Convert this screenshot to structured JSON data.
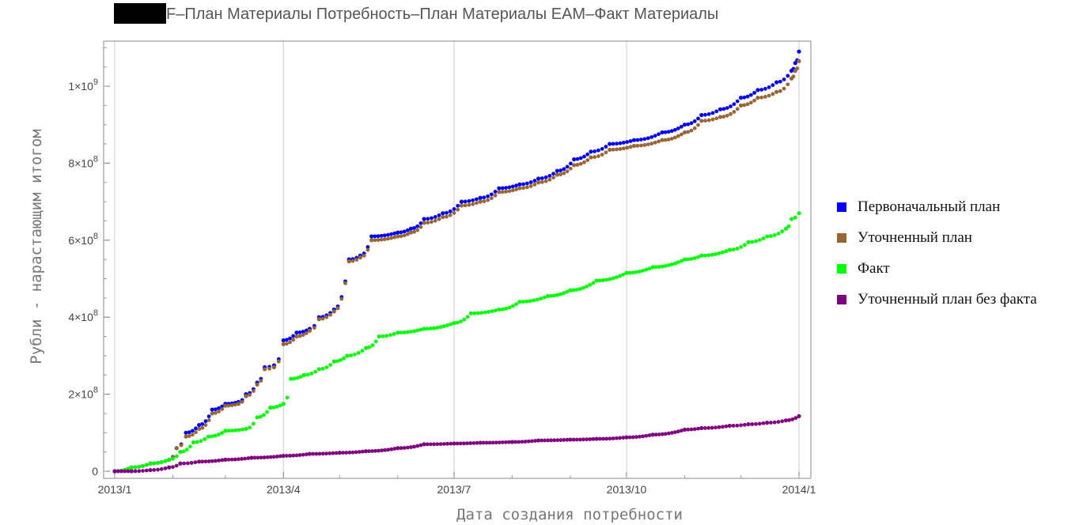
{
  "chart_data": {
    "type": "scatter",
    "title_visible": "F–План Материалы Потребность–План Материалы EAM–Факт Материалы",
    "xlabel": "Дата создания потребности",
    "ylabel": "Рубли - нарастающим итогом",
    "x_ticks": [
      "2013/1",
      "2013/4",
      "2013/7",
      "2013/10",
      "2014/1"
    ],
    "x_range": [
      "2013-01-01",
      "2014-01-01"
    ],
    "y_ticks": [
      "0",
      "2×10^8",
      "4×10^8",
      "6×10^8",
      "8×10^8",
      "1×10^9"
    ],
    "ylim": [
      0,
      1100000000
    ],
    "grid": "vertical",
    "legend_position": "right",
    "series": [
      {
        "name": "Первоначальный план",
        "color": "#0000ff",
        "points": [
          [
            "2013-01-01",
            0
          ],
          [
            "2013-01-10",
            10000000
          ],
          [
            "2013-01-20",
            20000000
          ],
          [
            "2013-01-30",
            30000000
          ],
          [
            "2013-02-03",
            60000000
          ],
          [
            "2013-02-08",
            100000000
          ],
          [
            "2013-02-15",
            120000000
          ],
          [
            "2013-02-22",
            160000000
          ],
          [
            "2013-03-01",
            175000000
          ],
          [
            "2013-03-08",
            180000000
          ],
          [
            "2013-03-12",
            200000000
          ],
          [
            "2013-03-18",
            230000000
          ],
          [
            "2013-03-22",
            270000000
          ],
          [
            "2013-03-27",
            275000000
          ],
          [
            "2013-04-01",
            340000000
          ],
          [
            "2013-04-08",
            360000000
          ],
          [
            "2013-04-15",
            370000000
          ],
          [
            "2013-04-20",
            400000000
          ],
          [
            "2013-04-28",
            420000000
          ],
          [
            "2013-05-06",
            550000000
          ],
          [
            "2013-05-12",
            560000000
          ],
          [
            "2013-05-18",
            610000000
          ],
          [
            "2013-06-01",
            620000000
          ],
          [
            "2013-06-08",
            630000000
          ],
          [
            "2013-06-15",
            655000000
          ],
          [
            "2013-06-25",
            670000000
          ],
          [
            "2013-07-05",
            700000000
          ],
          [
            "2013-07-15",
            710000000
          ],
          [
            "2013-07-25",
            735000000
          ],
          [
            "2013-08-05",
            745000000
          ],
          [
            "2013-08-15",
            760000000
          ],
          [
            "2013-08-25",
            780000000
          ],
          [
            "2013-09-03",
            810000000
          ],
          [
            "2013-09-12",
            830000000
          ],
          [
            "2013-09-22",
            850000000
          ],
          [
            "2013-10-05",
            860000000
          ],
          [
            "2013-10-20",
            880000000
          ],
          [
            "2013-11-01",
            900000000
          ],
          [
            "2013-11-10",
            925000000
          ],
          [
            "2013-11-20",
            940000000
          ],
          [
            "2013-12-01",
            970000000
          ],
          [
            "2013-12-10",
            990000000
          ],
          [
            "2013-12-20",
            1010000000
          ],
          [
            "2013-12-28",
            1040000000
          ],
          [
            "2013-12-30",
            1060000000
          ],
          [
            "2014-01-01",
            1090000000
          ]
        ]
      },
      {
        "name": "Уточненный план",
        "color": "#996633",
        "points": [
          [
            "2013-01-01",
            0
          ],
          [
            "2013-01-10",
            10000000
          ],
          [
            "2013-01-20",
            20000000
          ],
          [
            "2013-01-30",
            30000000
          ],
          [
            "2013-02-03",
            60000000
          ],
          [
            "2013-02-08",
            90000000
          ],
          [
            "2013-02-15",
            110000000
          ],
          [
            "2013-02-22",
            150000000
          ],
          [
            "2013-03-01",
            170000000
          ],
          [
            "2013-03-08",
            175000000
          ],
          [
            "2013-03-12",
            195000000
          ],
          [
            "2013-03-18",
            225000000
          ],
          [
            "2013-03-22",
            265000000
          ],
          [
            "2013-03-27",
            270000000
          ],
          [
            "2013-04-01",
            330000000
          ],
          [
            "2013-04-08",
            350000000
          ],
          [
            "2013-04-15",
            365000000
          ],
          [
            "2013-04-20",
            395000000
          ],
          [
            "2013-04-28",
            415000000
          ],
          [
            "2013-05-06",
            545000000
          ],
          [
            "2013-05-12",
            555000000
          ],
          [
            "2013-05-18",
            600000000
          ],
          [
            "2013-06-01",
            610000000
          ],
          [
            "2013-06-08",
            620000000
          ],
          [
            "2013-06-15",
            645000000
          ],
          [
            "2013-06-25",
            660000000
          ],
          [
            "2013-07-05",
            690000000
          ],
          [
            "2013-07-15",
            700000000
          ],
          [
            "2013-07-25",
            725000000
          ],
          [
            "2013-08-05",
            735000000
          ],
          [
            "2013-08-15",
            750000000
          ],
          [
            "2013-08-25",
            770000000
          ],
          [
            "2013-09-03",
            795000000
          ],
          [
            "2013-09-12",
            815000000
          ],
          [
            "2013-09-22",
            835000000
          ],
          [
            "2013-10-05",
            845000000
          ],
          [
            "2013-10-20",
            860000000
          ],
          [
            "2013-11-01",
            880000000
          ],
          [
            "2013-11-10",
            910000000
          ],
          [
            "2013-11-20",
            920000000
          ],
          [
            "2013-12-01",
            950000000
          ],
          [
            "2013-12-10",
            970000000
          ],
          [
            "2013-12-20",
            985000000
          ],
          [
            "2013-12-28",
            1020000000
          ],
          [
            "2013-12-30",
            1040000000
          ],
          [
            "2014-01-01",
            1065000000
          ]
        ]
      },
      {
        "name": "Факт",
        "color": "#00ff00",
        "points": [
          [
            "2013-01-01",
            0
          ],
          [
            "2013-01-10",
            10000000
          ],
          [
            "2013-01-20",
            20000000
          ],
          [
            "2013-01-30",
            30000000
          ],
          [
            "2013-02-05",
            50000000
          ],
          [
            "2013-02-12",
            75000000
          ],
          [
            "2013-02-20",
            90000000
          ],
          [
            "2013-03-01",
            105000000
          ],
          [
            "2013-03-12",
            110000000
          ],
          [
            "2013-03-18",
            140000000
          ],
          [
            "2013-03-25",
            165000000
          ],
          [
            "2013-04-01",
            175000000
          ],
          [
            "2013-04-05",
            240000000
          ],
          [
            "2013-04-12",
            250000000
          ],
          [
            "2013-04-20",
            265000000
          ],
          [
            "2013-04-28",
            285000000
          ],
          [
            "2013-05-05",
            300000000
          ],
          [
            "2013-05-15",
            320000000
          ],
          [
            "2013-05-22",
            350000000
          ],
          [
            "2013-06-01",
            360000000
          ],
          [
            "2013-06-15",
            370000000
          ],
          [
            "2013-07-01",
            385000000
          ],
          [
            "2013-07-10",
            410000000
          ],
          [
            "2013-07-25",
            420000000
          ],
          [
            "2013-08-05",
            440000000
          ],
          [
            "2013-08-20",
            455000000
          ],
          [
            "2013-09-01",
            470000000
          ],
          [
            "2013-09-15",
            495000000
          ],
          [
            "2013-10-01",
            515000000
          ],
          [
            "2013-10-15",
            530000000
          ],
          [
            "2013-11-01",
            550000000
          ],
          [
            "2013-11-10",
            560000000
          ],
          [
            "2013-11-25",
            575000000
          ],
          [
            "2013-12-05",
            595000000
          ],
          [
            "2013-12-15",
            610000000
          ],
          [
            "2013-12-25",
            630000000
          ],
          [
            "2013-12-28",
            655000000
          ],
          [
            "2014-01-01",
            670000000
          ]
        ]
      },
      {
        "name": "Уточненный план без факта",
        "color": "#800080",
        "points": [
          [
            "2013-01-01",
            0
          ],
          [
            "2013-01-10",
            0
          ],
          [
            "2013-01-20",
            3000000
          ],
          [
            "2013-01-30",
            10000000
          ],
          [
            "2013-02-05",
            20000000
          ],
          [
            "2013-02-15",
            25000000
          ],
          [
            "2013-03-01",
            30000000
          ],
          [
            "2013-03-15",
            35000000
          ],
          [
            "2013-04-01",
            40000000
          ],
          [
            "2013-04-15",
            45000000
          ],
          [
            "2013-05-01",
            48000000
          ],
          [
            "2013-05-15",
            52000000
          ],
          [
            "2013-06-01",
            60000000
          ],
          [
            "2013-06-15",
            70000000
          ],
          [
            "2013-07-01",
            72000000
          ],
          [
            "2013-07-15",
            74000000
          ],
          [
            "2013-08-01",
            76000000
          ],
          [
            "2013-08-15",
            80000000
          ],
          [
            "2013-09-01",
            82000000
          ],
          [
            "2013-09-15",
            84000000
          ],
          [
            "2013-10-01",
            88000000
          ],
          [
            "2013-10-15",
            95000000
          ],
          [
            "2013-11-01",
            108000000
          ],
          [
            "2013-11-10",
            112000000
          ],
          [
            "2013-11-25",
            118000000
          ],
          [
            "2013-12-05",
            122000000
          ],
          [
            "2013-12-15",
            126000000
          ],
          [
            "2013-12-25",
            132000000
          ],
          [
            "2014-01-01",
            143000000
          ]
        ]
      }
    ]
  }
}
